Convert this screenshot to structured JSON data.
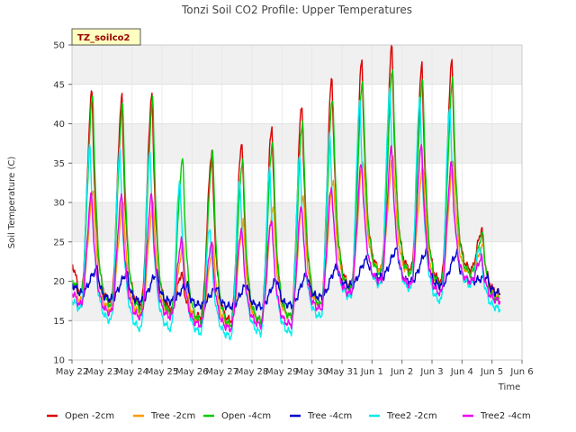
{
  "chart_data": {
    "type": "line",
    "title": "Tonzi Soil CO2 Profile: Upper Temperatures",
    "xlabel": "Time",
    "ylabel": "Soil Temperature (C)",
    "badge": "TZ_soilco2",
    "ylim": [
      10,
      50
    ],
    "y_ticks": [
      10,
      15,
      20,
      25,
      30,
      35,
      40,
      45,
      50
    ],
    "x_ticks": [
      "May 22",
      "May 23",
      "May 24",
      "May 25",
      "May 26",
      "May 27",
      "May 28",
      "May 29",
      "May 30",
      "May 31",
      "Jun 1",
      "Jun 2",
      "Jun 3",
      "Jun 4",
      "Jun 5",
      "Jun 6"
    ],
    "xlim_days": [
      0,
      15
    ],
    "grid": "horizontal bands",
    "legend_placement": "bottom",
    "day_columns": [
      "min",
      "peak_time",
      "peak"
    ],
    "series": [
      {
        "name": "Open -2cm",
        "color": "#dd0000",
        "start": 22.0,
        "daily": [
          [
            18.5,
            0.67,
            44.0
          ],
          [
            17.5,
            0.67,
            43.3
          ],
          [
            17.0,
            0.67,
            43.7
          ],
          [
            16.5,
            0.67,
            21.0
          ],
          [
            15.5,
            0.67,
            36.5
          ],
          [
            15.0,
            0.67,
            37.8
          ],
          [
            15.0,
            0.67,
            39.7
          ],
          [
            15.5,
            0.67,
            42.5
          ],
          [
            17.0,
            0.67,
            45.8
          ],
          [
            19.5,
            0.67,
            48.0
          ],
          [
            21.5,
            0.67,
            49.8
          ],
          [
            21.5,
            0.67,
            47.3
          ],
          [
            20.0,
            0.67,
            48.0
          ],
          [
            21.5,
            0.67,
            26.5
          ]
        ],
        "end": 18.5
      },
      {
        "name": "Tree -2cm",
        "color": "#ff9900",
        "start": 20.0,
        "daily": [
          [
            17.5,
            0.72,
            31.5
          ],
          [
            16.5,
            0.72,
            30.2
          ],
          [
            16.0,
            0.72,
            29.8
          ],
          [
            16.0,
            0.72,
            24.5
          ],
          [
            15.0,
            0.72,
            24.5
          ],
          [
            14.5,
            0.72,
            27.5
          ],
          [
            15.0,
            0.72,
            29.5
          ],
          [
            15.5,
            0.72,
            31.0
          ],
          [
            17.0,
            0.72,
            33.0
          ],
          [
            19.5,
            0.72,
            35.5
          ],
          [
            21.5,
            0.72,
            36.0
          ],
          [
            21.0,
            0.72,
            34.5
          ],
          [
            19.5,
            0.72,
            35.0
          ],
          [
            21.0,
            0.72,
            24.5
          ]
        ],
        "end": 18.0
      },
      {
        "name": "Open -4cm",
        "color": "#00cc00",
        "start": 20.0,
        "daily": [
          [
            18.5,
            0.7,
            43.5
          ],
          [
            17.0,
            0.7,
            42.5
          ],
          [
            16.5,
            0.7,
            43.0
          ],
          [
            16.0,
            0.7,
            35.5
          ],
          [
            15.0,
            0.7,
            36.3
          ],
          [
            14.5,
            0.7,
            35.5
          ],
          [
            15.0,
            0.7,
            38.0
          ],
          [
            15.5,
            0.7,
            40.5
          ],
          [
            17.0,
            0.7,
            43.5
          ],
          [
            19.0,
            0.7,
            45.5
          ],
          [
            21.0,
            0.7,
            47.0
          ],
          [
            21.0,
            0.7,
            45.5
          ],
          [
            19.5,
            0.7,
            45.5
          ],
          [
            21.0,
            0.7,
            26.0
          ]
        ],
        "end": 17.5
      },
      {
        "name": "Tree -4cm",
        "color": "#0000cc",
        "start": 19.5,
        "daily": [
          [
            18.5,
            0.85,
            21.5
          ],
          [
            17.8,
            0.85,
            21.0
          ],
          [
            17.5,
            0.85,
            21.0
          ],
          [
            17.5,
            0.85,
            19.5
          ],
          [
            17.0,
            0.85,
            19.2
          ],
          [
            16.8,
            0.85,
            19.5
          ],
          [
            16.8,
            0.85,
            20.2
          ],
          [
            17.0,
            0.85,
            20.8
          ],
          [
            18.0,
            0.85,
            21.8
          ],
          [
            19.5,
            0.85,
            22.8
          ],
          [
            20.5,
            0.85,
            24.0
          ],
          [
            20.0,
            0.85,
            23.8
          ],
          [
            19.5,
            0.85,
            23.5
          ],
          [
            20.0,
            0.85,
            20.5
          ]
        ],
        "end": 18.5
      },
      {
        "name": "Tree2 -2cm",
        "color": "#00eeee",
        "start": 17.5,
        "daily": [
          [
            16.5,
            0.6,
            37.5
          ],
          [
            15.0,
            0.6,
            37.0
          ],
          [
            14.0,
            0.6,
            37.0
          ],
          [
            14.0,
            0.6,
            33.0
          ],
          [
            13.5,
            0.6,
            27.0
          ],
          [
            13.0,
            0.6,
            33.0
          ],
          [
            13.5,
            0.6,
            34.5
          ],
          [
            13.5,
            0.6,
            36.0
          ],
          [
            15.5,
            0.6,
            38.5
          ],
          [
            18.0,
            0.6,
            43.0
          ],
          [
            19.5,
            0.6,
            44.5
          ],
          [
            19.0,
            0.6,
            43.5
          ],
          [
            17.5,
            0.6,
            42.5
          ],
          [
            19.5,
            0.6,
            24.5
          ]
        ],
        "end": 16.5
      },
      {
        "name": "Tree2 -4cm",
        "color": "#ee00ee",
        "start": 18.5,
        "daily": [
          [
            17.0,
            0.66,
            31.0
          ],
          [
            16.0,
            0.66,
            30.8
          ],
          [
            15.5,
            0.66,
            31.0
          ],
          [
            15.5,
            0.66,
            25.2
          ],
          [
            14.5,
            0.66,
            25.0
          ],
          [
            14.0,
            0.66,
            26.8
          ],
          [
            14.5,
            0.66,
            28.0
          ],
          [
            14.5,
            0.66,
            29.8
          ],
          [
            16.5,
            0.66,
            32.0
          ],
          [
            18.5,
            0.66,
            35.0
          ],
          [
            20.0,
            0.66,
            37.0
          ],
          [
            19.5,
            0.66,
            37.2
          ],
          [
            18.5,
            0.66,
            35.0
          ],
          [
            20.0,
            0.66,
            23.0
          ]
        ],
        "end": 17.5
      }
    ]
  }
}
